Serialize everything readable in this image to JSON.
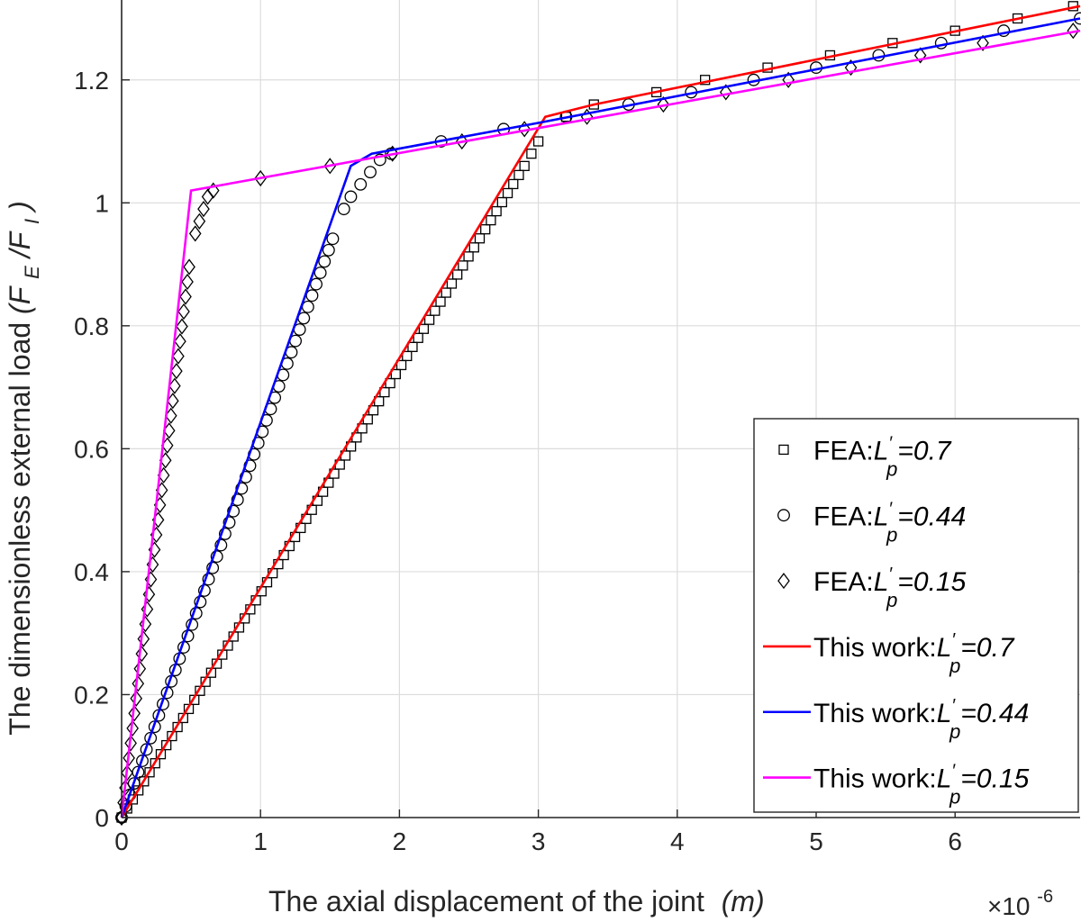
{
  "chart_data": {
    "type": "line",
    "title": "",
    "xlabel": "The axial displacement of the joint",
    "xlabel_unit": "(m)",
    "x_exponent_label": "×10",
    "x_exponent": "-6",
    "ylabel": "The dimensionless external load",
    "ylabel_symbol": "(F_E/F_I)",
    "xlim": [
      0,
      6.9
    ],
    "ylim": [
      0,
      1.33
    ],
    "xticks": [
      0,
      1,
      2,
      3,
      4,
      5,
      6
    ],
    "xtick_labels": [
      "0",
      "1",
      "2",
      "3",
      "4",
      "5",
      "6"
    ],
    "yticks": [
      0,
      0.2,
      0.4,
      0.6,
      0.8,
      1.0,
      1.2
    ],
    "ytick_labels": [
      "0",
      "0.2",
      "0.4",
      "0.6",
      "0.8",
      "1",
      "1.2"
    ],
    "grid": true,
    "legend_position": "lower-right",
    "series": [
      {
        "name": "FEA:L'p=0.7",
        "label_prefix": "FEA:",
        "label_value": "=0.7",
        "kind": "marker",
        "marker": "square",
        "color": "#000000",
        "segments": [
          {
            "x0": 0,
            "x1": 2.9,
            "y0": 0,
            "y1": 1.06,
            "n": 72
          },
          {
            "x0": 2.9,
            "x1": 3.05,
            "y0": 1.06,
            "y1": 1.12,
            "n": 3
          }
        ],
        "points": [
          [
            3.2,
            1.14
          ],
          [
            3.4,
            1.16
          ],
          [
            3.85,
            1.18
          ],
          [
            4.2,
            1.2
          ],
          [
            4.65,
            1.22
          ],
          [
            5.1,
            1.24
          ],
          [
            5.55,
            1.26
          ],
          [
            6.0,
            1.28
          ],
          [
            6.45,
            1.3
          ],
          [
            6.85,
            1.32
          ]
        ]
      },
      {
        "name": "FEA:L'p=0.44",
        "label_prefix": "FEA:",
        "label_value": "=0.44",
        "kind": "marker",
        "marker": "circle",
        "color": "#000000",
        "segments": [
          {
            "x0": 0,
            "x1": 1.55,
            "y0": 0,
            "y1": 0.96,
            "n": 52
          }
        ],
        "points": [
          [
            1.6,
            0.99
          ],
          [
            1.65,
            1.01
          ],
          [
            1.72,
            1.03
          ],
          [
            1.79,
            1.05
          ],
          [
            1.86,
            1.07
          ],
          [
            1.94,
            1.08
          ],
          [
            2.3,
            1.1
          ],
          [
            2.75,
            1.12
          ],
          [
            3.2,
            1.14
          ],
          [
            3.65,
            1.16
          ],
          [
            4.1,
            1.18
          ],
          [
            4.55,
            1.2
          ],
          [
            5.0,
            1.22
          ],
          [
            5.45,
            1.24
          ],
          [
            5.9,
            1.26
          ],
          [
            6.35,
            1.28
          ],
          [
            6.9,
            1.3
          ]
        ]
      },
      {
        "name": "FEA:L'p=0.15",
        "label_prefix": "FEA:",
        "label_value": "=0.15",
        "kind": "marker",
        "marker": "diamond",
        "color": "#000000",
        "segments": [
          {
            "x0": 0,
            "x1": 0.5,
            "y0": 0,
            "y1": 0.92,
            "n": 38
          }
        ],
        "points": [
          [
            0.53,
            0.95
          ],
          [
            0.56,
            0.97
          ],
          [
            0.59,
            0.99
          ],
          [
            0.62,
            1.01
          ],
          [
            0.66,
            1.02
          ],
          [
            1.0,
            1.04
          ],
          [
            1.5,
            1.06
          ],
          [
            1.95,
            1.08
          ],
          [
            2.45,
            1.1
          ],
          [
            2.9,
            1.12
          ],
          [
            3.35,
            1.14
          ],
          [
            3.9,
            1.16
          ],
          [
            4.35,
            1.18
          ],
          [
            4.8,
            1.2
          ],
          [
            5.25,
            1.22
          ],
          [
            5.75,
            1.24
          ],
          [
            6.2,
            1.26
          ],
          [
            6.85,
            1.28
          ]
        ]
      },
      {
        "name": "This work:L'p=0.7",
        "label_prefix": "This work:",
        "label_value": "=0.7",
        "kind": "line",
        "color": "#ff0000",
        "x": [
          0,
          3.05,
          3.4,
          6.9
        ],
        "y": [
          0,
          1.14,
          1.16,
          1.32
        ]
      },
      {
        "name": "This work:L'p=0.44",
        "label_prefix": "This work:",
        "label_value": "=0.44",
        "kind": "line",
        "color": "#0000ff",
        "x": [
          0,
          1.65,
          1.8,
          3.0,
          6.9
        ],
        "y": [
          0,
          1.06,
          1.08,
          1.13,
          1.3
        ]
      },
      {
        "name": "This work:L'p=0.15",
        "label_prefix": "This work:",
        "label_value": "=0.15",
        "kind": "line",
        "color": "#ff00ff",
        "x": [
          0,
          0.5,
          6.9
        ],
        "y": [
          0,
          1.02,
          1.28
        ]
      }
    ]
  }
}
